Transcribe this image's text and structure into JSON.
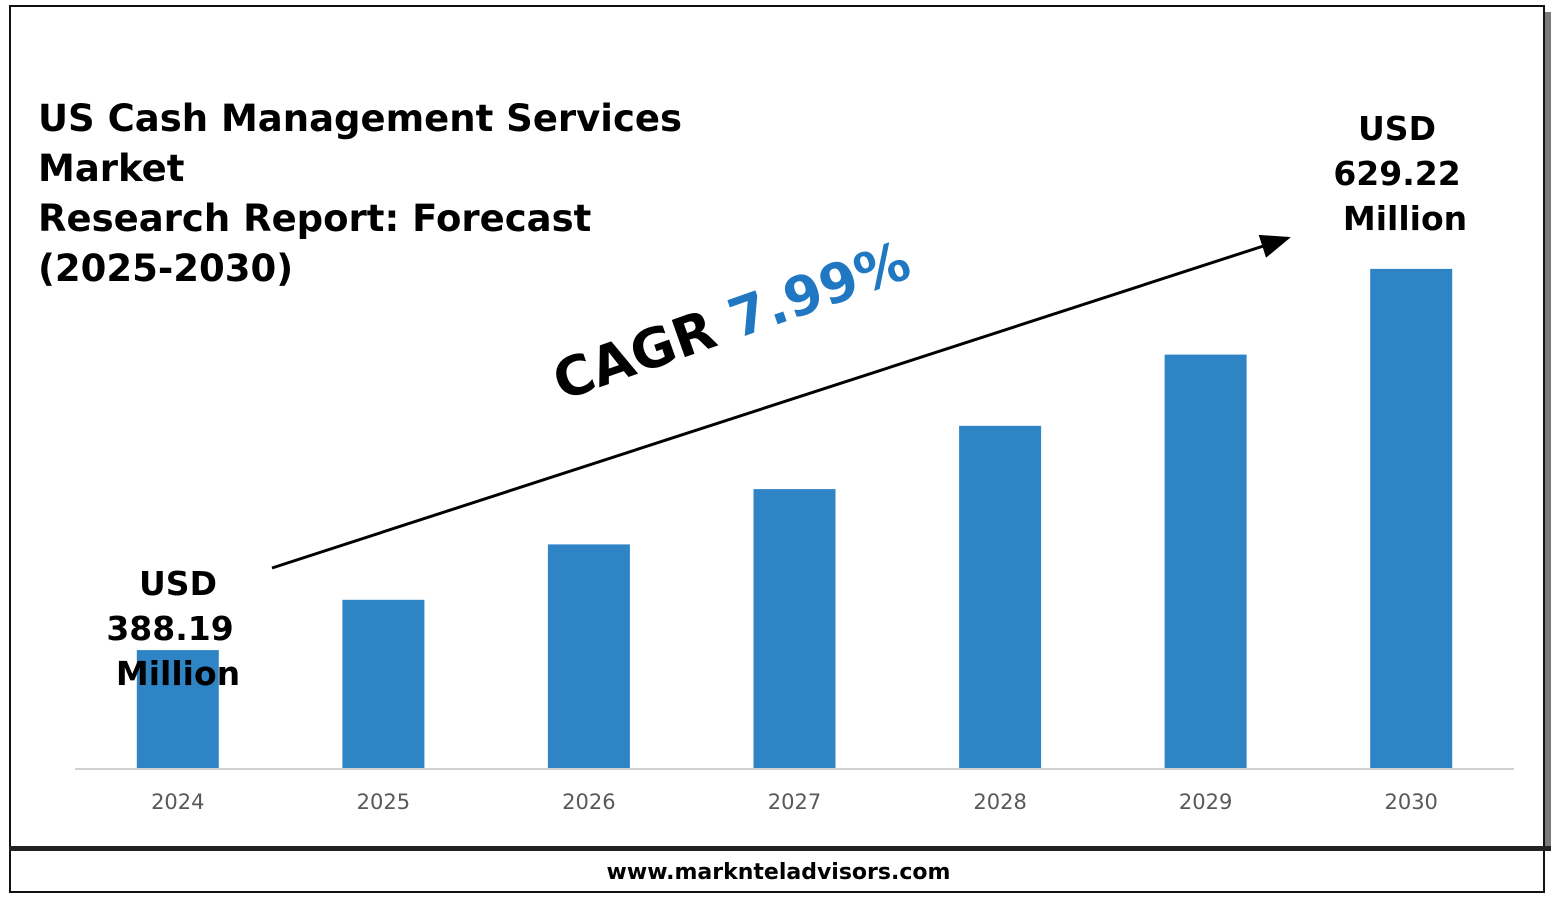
{
  "title_lines": [
    "US Cash Management Services Market",
    "Research Report: Forecast",
    "(2025-2030)"
  ],
  "colors": {
    "bar": "#2f84c6",
    "cagr_value": "#1f78c1",
    "axis": "#d0d0d0",
    "text": "#000000"
  },
  "chart_data": {
    "type": "bar",
    "title": "US Cash Management Services Market Research Report: Forecast (2025-2030)",
    "categories": [
      "2024",
      "2025",
      "2026",
      "2027",
      "2028",
      "2029",
      "2030"
    ],
    "series": [
      {
        "values": [
          388.19,
          420,
          455,
          490,
          530,
          575,
          629.22
        ]
      }
    ],
    "ylim": [
      313,
      650
    ],
    "grid": false,
    "legend": "none"
  },
  "callouts": {
    "start": {
      "line1": "USD",
      "line2": "388.19",
      "line3": "Million"
    },
    "end": {
      "line1": "USD",
      "line2": "629.22",
      "line3": "Million"
    }
  },
  "cagr": {
    "label": "CAGR",
    "value": "7.99%"
  },
  "footer": {
    "url": "www.marknteladvisors.com"
  }
}
